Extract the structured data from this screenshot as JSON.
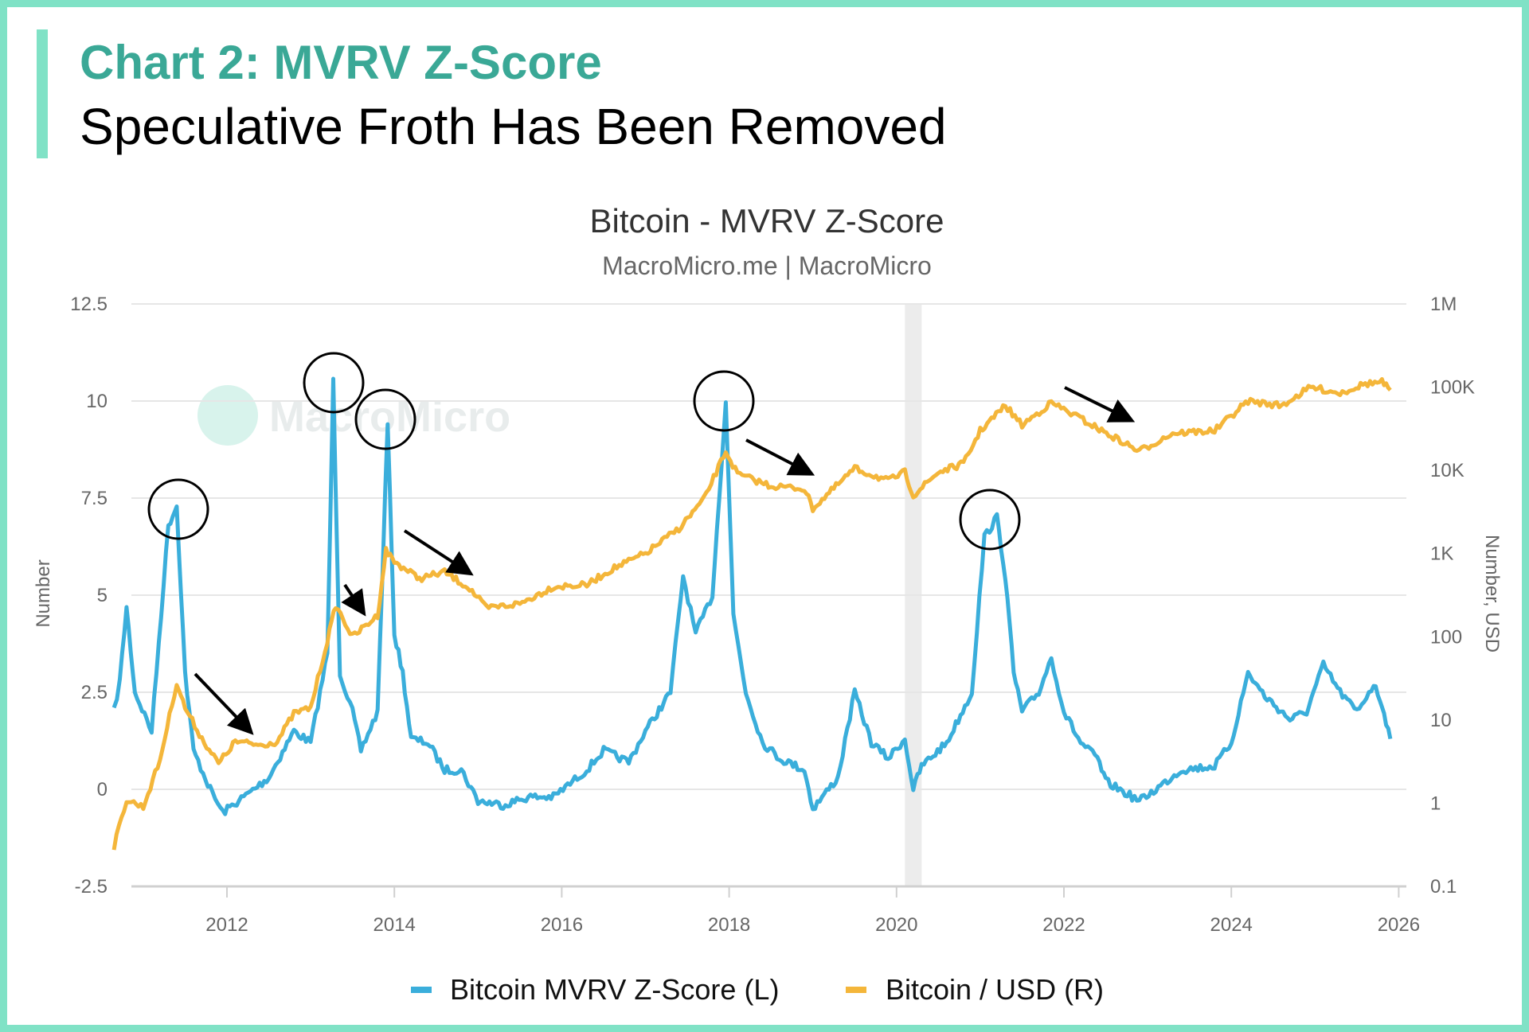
{
  "header": {
    "title": "Chart 2: MVRV Z-Score",
    "subtitle": "Speculative Froth Has Been Removed"
  },
  "colors": {
    "border": "#80e2c6",
    "title": "#3aa896",
    "zscore": "#3aaedb",
    "price": "#f4b63a",
    "recession_band": "#ececec"
  },
  "chart_data": {
    "type": "line",
    "title": "Bitcoin - MVRV Z-Score",
    "subtitle": "MacroMicro.me | MacroMicro",
    "watermark": "MacroMicro",
    "ylabel_left": "Number",
    "ylabel_right": "Number, USD",
    "xlim": [
      2010.5,
      2026
    ],
    "ylim_left": [
      -2.5,
      12.5
    ],
    "ylim_right": [
      0.1,
      1000000
    ],
    "right_scale": "log",
    "grid": true,
    "legend_placement": "bottom",
    "x_ticks": [
      "2012",
      "2014",
      "2016",
      "2018",
      "2020",
      "2022",
      "2024",
      "2026"
    ],
    "y_ticks_left": [
      "12.5",
      "10",
      "7.5",
      "5",
      "2.5",
      "0",
      "-2.5"
    ],
    "y_ticks_right": [
      "1M",
      "100K",
      "10K",
      "1K",
      "100",
      "10",
      "1",
      "0.1"
    ],
    "shaded_period": [
      2020.1,
      2020.3
    ],
    "series": [
      {
        "name": "Bitcoin MVRV Z-Score (L)",
        "axis": "left",
        "color": "#3aaedb",
        "points": [
          [
            2010.65,
            2.0
          ],
          [
            2010.72,
            2.8
          ],
          [
            2010.8,
            4.7
          ],
          [
            2010.9,
            2.5
          ],
          [
            2011.1,
            1.5
          ],
          [
            2011.3,
            6.8
          ],
          [
            2011.4,
            7.3
          ],
          [
            2011.5,
            3.0
          ],
          [
            2011.6,
            1.0
          ],
          [
            2011.8,
            0.0
          ],
          [
            2011.95,
            -0.6
          ],
          [
            2012.2,
            -0.2
          ],
          [
            2012.5,
            0.3
          ],
          [
            2012.8,
            1.5
          ],
          [
            2013.0,
            1.2
          ],
          [
            2013.2,
            3.5
          ],
          [
            2013.27,
            10.5
          ],
          [
            2013.35,
            3.0
          ],
          [
            2013.5,
            2.0
          ],
          [
            2013.6,
            1.0
          ],
          [
            2013.8,
            2.0
          ],
          [
            2013.92,
            9.4
          ],
          [
            2014.0,
            4.0
          ],
          [
            2014.1,
            3.0
          ],
          [
            2014.2,
            1.3
          ],
          [
            2014.4,
            1.2
          ],
          [
            2014.6,
            0.5
          ],
          [
            2014.8,
            0.5
          ],
          [
            2015.0,
            -0.3
          ],
          [
            2015.3,
            -0.4
          ],
          [
            2015.6,
            -0.2
          ],
          [
            2015.9,
            -0.2
          ],
          [
            2016.3,
            0.5
          ],
          [
            2016.5,
            1.0
          ],
          [
            2016.8,
            0.7
          ],
          [
            2017.0,
            1.5
          ],
          [
            2017.3,
            2.5
          ],
          [
            2017.45,
            5.5
          ],
          [
            2017.6,
            4.0
          ],
          [
            2017.8,
            5.0
          ],
          [
            2017.96,
            10.0
          ],
          [
            2018.05,
            4.5
          ],
          [
            2018.2,
            2.5
          ],
          [
            2018.4,
            1.2
          ],
          [
            2018.6,
            0.8
          ],
          [
            2018.9,
            0.5
          ],
          [
            2019.0,
            -0.5
          ],
          [
            2019.3,
            0.3
          ],
          [
            2019.5,
            2.5
          ],
          [
            2019.7,
            1.2
          ],
          [
            2019.9,
            0.8
          ],
          [
            2020.1,
            1.3
          ],
          [
            2020.2,
            0.0
          ],
          [
            2020.3,
            0.6
          ],
          [
            2020.6,
            1.2
          ],
          [
            2020.9,
            2.5
          ],
          [
            2021.05,
            6.5
          ],
          [
            2021.2,
            7.0
          ],
          [
            2021.3,
            5.5
          ],
          [
            2021.4,
            3.0
          ],
          [
            2021.5,
            2.0
          ],
          [
            2021.7,
            2.5
          ],
          [
            2021.85,
            3.4
          ],
          [
            2022.0,
            2.0
          ],
          [
            2022.2,
            1.2
          ],
          [
            2022.4,
            0.8
          ],
          [
            2022.5,
            0.2
          ],
          [
            2022.9,
            -0.3
          ],
          [
            2023.1,
            0.0
          ],
          [
            2023.4,
            0.5
          ],
          [
            2023.8,
            0.6
          ],
          [
            2024.0,
            1.2
          ],
          [
            2024.2,
            3.0
          ],
          [
            2024.4,
            2.4
          ],
          [
            2024.7,
            1.8
          ],
          [
            2024.9,
            2.0
          ],
          [
            2025.1,
            3.2
          ],
          [
            2025.3,
            2.5
          ],
          [
            2025.5,
            2.0
          ],
          [
            2025.7,
            2.7
          ],
          [
            2025.8,
            2.2
          ],
          [
            2025.9,
            1.3
          ]
        ]
      },
      {
        "name": "Bitcoin / USD (R)",
        "axis": "right",
        "color": "#f4b63a",
        "points": [
          [
            2010.65,
            0.3
          ],
          [
            2010.8,
            1.1
          ],
          [
            2011.0,
            0.9
          ],
          [
            2011.2,
            3.3
          ],
          [
            2011.4,
            28
          ],
          [
            2011.5,
            14
          ],
          [
            2011.7,
            6
          ],
          [
            2011.9,
            3
          ],
          [
            2012.1,
            5.5
          ],
          [
            2012.4,
            5
          ],
          [
            2012.6,
            5.5
          ],
          [
            2012.8,
            12
          ],
          [
            2013.0,
            14
          ],
          [
            2013.2,
            90
          ],
          [
            2013.3,
            240
          ],
          [
            2013.5,
            100
          ],
          [
            2013.8,
            180
          ],
          [
            2013.9,
            1100
          ],
          [
            2014.0,
            800
          ],
          [
            2014.3,
            500
          ],
          [
            2014.6,
            600
          ],
          [
            2014.9,
            380
          ],
          [
            2015.1,
            220
          ],
          [
            2015.5,
            250
          ],
          [
            2015.9,
            400
          ],
          [
            2016.3,
            420
          ],
          [
            2016.6,
            650
          ],
          [
            2017.0,
            1000
          ],
          [
            2017.4,
            2000
          ],
          [
            2017.7,
            4500
          ],
          [
            2017.96,
            17000
          ],
          [
            2018.1,
            9000
          ],
          [
            2018.5,
            6500
          ],
          [
            2018.9,
            6000
          ],
          [
            2019.0,
            3500
          ],
          [
            2019.5,
            10500
          ],
          [
            2019.9,
            7500
          ],
          [
            2020.1,
            9500
          ],
          [
            2020.2,
            5000
          ],
          [
            2020.5,
            9500
          ],
          [
            2020.8,
            12000
          ],
          [
            2021.0,
            30000
          ],
          [
            2021.3,
            60000
          ],
          [
            2021.5,
            35000
          ],
          [
            2021.85,
            65000
          ],
          [
            2022.2,
            42000
          ],
          [
            2022.45,
            30000
          ],
          [
            2022.9,
            17000
          ],
          [
            2023.3,
            28000
          ],
          [
            2023.8,
            30000
          ],
          [
            2024.2,
            68000
          ],
          [
            2024.6,
            60000
          ],
          [
            2024.95,
            100000
          ],
          [
            2025.3,
            85000
          ],
          [
            2025.6,
            110000
          ],
          [
            2025.8,
            115000
          ],
          [
            2025.9,
            92000
          ]
        ]
      }
    ]
  }
}
